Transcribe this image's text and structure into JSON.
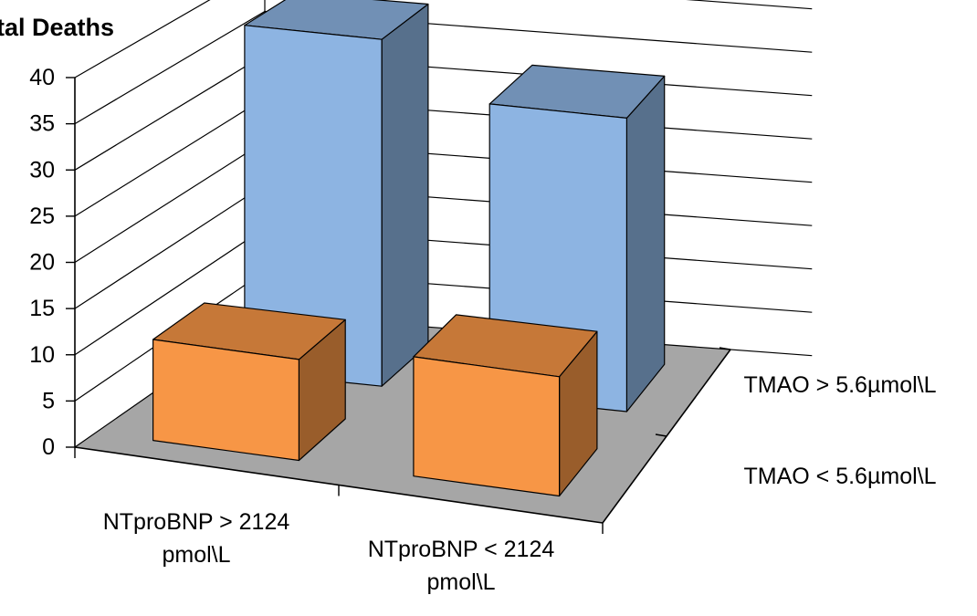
{
  "chart_data": {
    "type": "bar",
    "title": "tal Deaths",
    "categories": [
      "NTproBNP > 2124 pmol\\L",
      "NTproBNP < 2124 pmol\\L"
    ],
    "category_lines": [
      [
        "NTproBNP > 2124",
        "pmol\\L"
      ],
      [
        "NTproBNP < 2124",
        "pmol\\L"
      ]
    ],
    "series": [
      {
        "name": "TMAO < 5.6µmol\\L",
        "values": [
          11,
          13
        ],
        "color": "#F79646"
      },
      {
        "name": "TMAO > 5.6µmol\\L",
        "values": [
          39,
          33
        ],
        "color": "#8DB4E2"
      }
    ],
    "yticks": [
      "0",
      "5",
      "10",
      "15",
      "20",
      "25",
      "30",
      "35",
      "40"
    ],
    "ylim": [
      0,
      40
    ],
    "floor_color": "#A6A6A6",
    "grid": true,
    "projection": "3d"
  }
}
